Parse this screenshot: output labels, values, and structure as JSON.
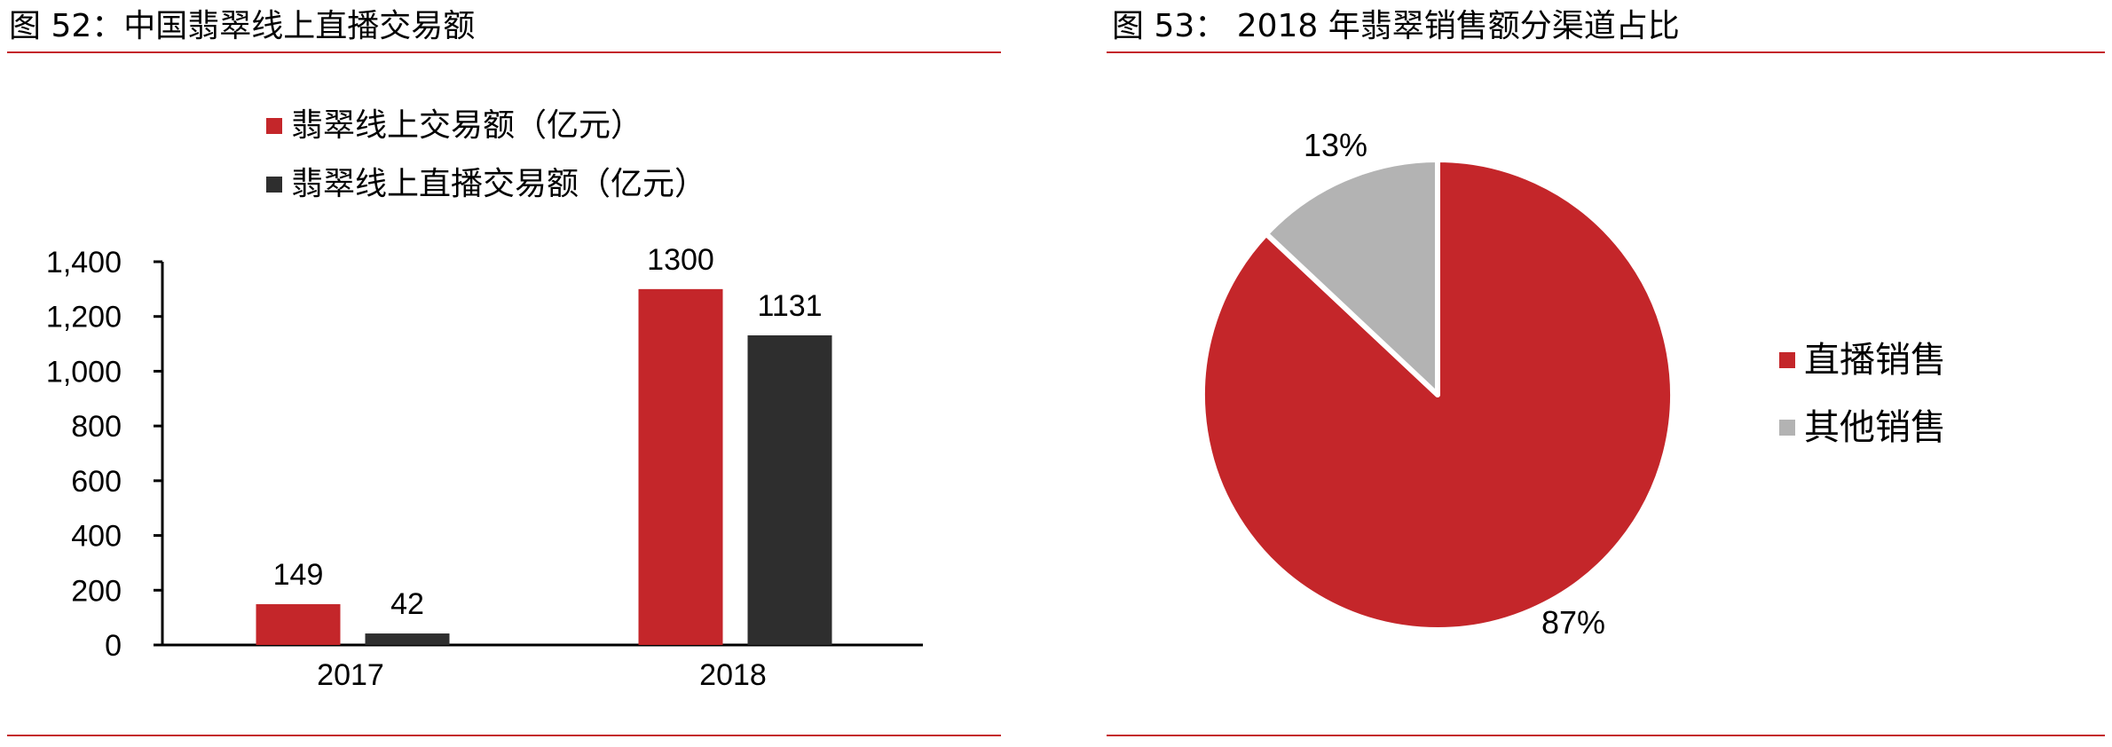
{
  "left": {
    "title": "图 52：中国翡翠线上直播交易额",
    "chart_data": {
      "type": "bar",
      "categories": [
        "2017",
        "2018"
      ],
      "series": [
        {
          "name": "翡翠线上交易额（亿元）",
          "values": [
            149,
            1300
          ],
          "color": "#c4262a"
        },
        {
          "name": "翡翠线上直播交易额（亿元）",
          "values": [
            42,
            1131
          ],
          "color": "#2e2e2e"
        }
      ],
      "data_labels": [
        [
          "149",
          "1300"
        ],
        [
          "42",
          "1131"
        ]
      ],
      "yticks": [
        "0",
        "200",
        "400",
        "600",
        "800",
        "1,000",
        "1,200",
        "1,400"
      ],
      "ylim": [
        0,
        1400
      ],
      "grid": false,
      "legend_position": "top-left"
    }
  },
  "right": {
    "title": "图 53：  2018 年翡翠销售额分渠道占比",
    "chart_data": {
      "type": "pie",
      "slices": [
        {
          "name": "直播销售",
          "value": 87,
          "label": "87%",
          "color": "#c4262a"
        },
        {
          "name": "其他销售",
          "value": 13,
          "label": "13%",
          "color": "#b3b3b3"
        }
      ],
      "legend_position": "right"
    }
  }
}
